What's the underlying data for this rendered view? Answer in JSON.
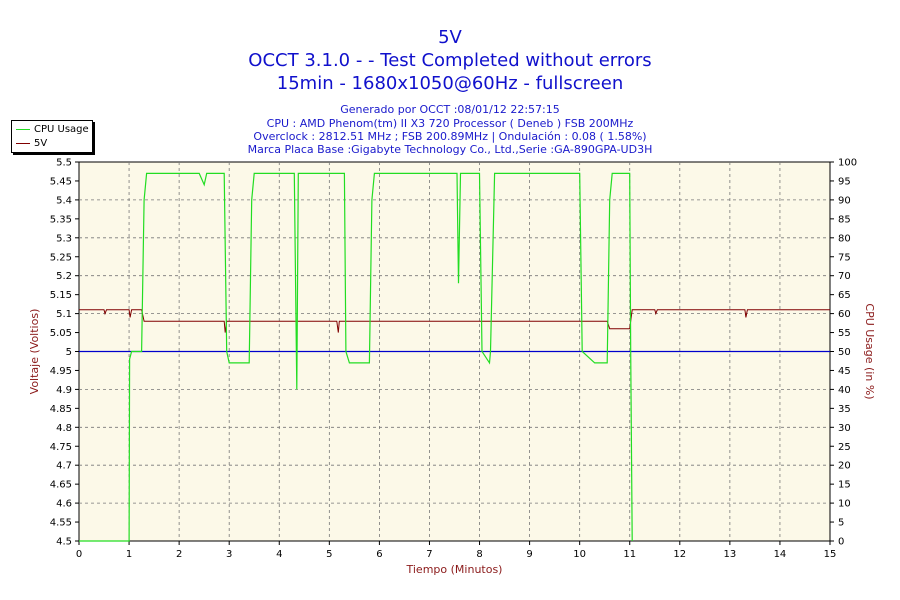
{
  "title": "5V",
  "subtitle1": "OCCT 3.1.0 -  - Test Completed without errors",
  "subtitle2": "15min - 1680x1050@60Hz - fullscreen",
  "info": [
    "Generado por OCCT :08/01/12 22:57:15",
    "CPU : AMD Phenom(tm) II X3 720 Processor ( Deneb ) FSB 200MHz",
    "Overclock : 2812.51 MHz ; FSB 200.89MHz | Ondulación : 0.08 ( 1.58%)",
    "Marca Placa Base :Gigabyte Technology Co., Ltd.,Serie :GA-890GPA-UD3H"
  ],
  "colors": {
    "plot_bg": "#fcf9e8",
    "cpu_line": "#22dd22",
    "volt_line": "#800000",
    "ref_line": "#0000cc",
    "grid": "#777777",
    "axis_label": "#8b1a1a"
  },
  "chart_data": {
    "type": "line",
    "xlabel": "Tiempo (Minutos)",
    "ylabel_left": "Voltaje (Voltios)",
    "ylabel_right": "CPU Usage (in %)",
    "xlim": [
      0,
      15
    ],
    "ylim_left": [
      4.5,
      5.5
    ],
    "ylim_right": [
      0,
      100
    ],
    "x_ticks": [
      0,
      1,
      2,
      3,
      4,
      5,
      6,
      7,
      8,
      9,
      10,
      11,
      12,
      13,
      14,
      15
    ],
    "y_left_ticks": [
      "4.5",
      "4.55",
      "4.6",
      "4.65",
      "4.7",
      "4.75",
      "4.8",
      "4.85",
      "4.9",
      "4.95",
      "5",
      "5.05",
      "5.1",
      "5.15",
      "5.2",
      "5.25",
      "5.3",
      "5.35",
      "5.4",
      "5.45",
      "5.5"
    ],
    "y_right_ticks": [
      0,
      5,
      10,
      15,
      20,
      25,
      30,
      35,
      40,
      45,
      50,
      55,
      60,
      65,
      70,
      75,
      80,
      85,
      90,
      95,
      100
    ],
    "grid": true,
    "legend_position": "top-left outside",
    "reference_line": {
      "name": "",
      "value": 5.0
    },
    "series": [
      {
        "name": "CPU Usage",
        "axis": "right",
        "x": [
          0,
          1.0,
          1.01,
          1.05,
          1.1,
          1.25,
          1.3,
          1.35,
          2.4,
          2.5,
          2.55,
          2.9,
          2.95,
          3.0,
          3.4,
          3.45,
          3.5,
          4.3,
          4.35,
          4.38,
          4.45,
          5.3,
          5.33,
          5.4,
          5.8,
          5.85,
          5.9,
          7.55,
          7.58,
          7.62,
          7.7,
          7.75,
          8.0,
          8.05,
          8.2,
          8.22,
          8.3,
          10.0,
          10.05,
          10.3,
          10.55,
          10.6,
          10.65,
          11.0,
          11.02,
          11.05
        ],
        "y": [
          0,
          0,
          48,
          50,
          50,
          50,
          90,
          97,
          97,
          94,
          97,
          97,
          50,
          47,
          47,
          90,
          97,
          97,
          40,
          97,
          97,
          97,
          50,
          47,
          47,
          90,
          97,
          97,
          68,
          97,
          97,
          97,
          97,
          50,
          47,
          50,
          97,
          97,
          50,
          47,
          47,
          90,
          97,
          97,
          50,
          0
        ]
      },
      {
        "name": "5V",
        "axis": "left",
        "x": [
          0,
          0.5,
          0.52,
          0.55,
          1.0,
          1.02,
          1.05,
          1.25,
          1.3,
          2.9,
          2.92,
          2.95,
          3.0,
          5.15,
          5.18,
          5.2,
          5.25,
          8.0,
          10.55,
          10.6,
          11.0,
          11.05,
          11.5,
          11.52,
          11.55,
          13.3,
          13.32,
          13.35,
          15.0
        ],
        "y": [
          5.11,
          5.11,
          5.1,
          5.11,
          5.11,
          5.09,
          5.11,
          5.11,
          5.08,
          5.08,
          5.05,
          5.08,
          5.08,
          5.08,
          5.05,
          5.08,
          5.08,
          5.08,
          5.08,
          5.06,
          5.06,
          5.11,
          5.11,
          5.1,
          5.11,
          5.11,
          5.09,
          5.11,
          5.11
        ]
      }
    ]
  }
}
